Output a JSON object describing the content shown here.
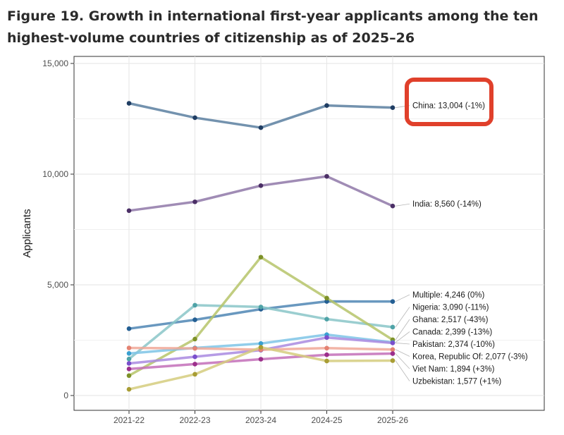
{
  "figure": {
    "title_line1": "Figure 19. Growth in international first-year applicants among the ten",
    "title_line2": "highest-volume countries of citizenship as of 2025–26"
  },
  "highlight_color": "#e0402b",
  "chart_data": {
    "type": "line",
    "title": "Figure 19. Growth in international first-year applicants among the ten highest-volume countries of citizenship as of 2025–26",
    "xlabel": "",
    "ylabel": "Applicants",
    "x": [
      "2021-22",
      "2022-23",
      "2023-24",
      "2024-25",
      "2025-26"
    ],
    "ylim": [
      0,
      15000
    ],
    "yticks": [
      0,
      5000,
      10000,
      15000
    ],
    "ytick_labels": [
      "0",
      "5,000",
      "10,000",
      "15,000"
    ],
    "grid": true,
    "legend": "direct labels at line ends",
    "series": [
      {
        "name": "China",
        "label": "China: 13,004 (-1%)",
        "color": "#5a7fa0",
        "point_color": "#1f3d63",
        "values": [
          13200,
          12550,
          12100,
          13100,
          13004
        ],
        "highlighted": true
      },
      {
        "name": "India",
        "label": "India: 8,560 (-14%)",
        "color": "#8f78a8",
        "point_color": "#4b2f66",
        "values": [
          8350,
          8750,
          9480,
          9900,
          8560
        ]
      },
      {
        "name": "Multiple",
        "label": "Multiple: 4,246 (0%)",
        "color": "#4f86b4",
        "point_color": "#245f93",
        "values": [
          3020,
          3420,
          3900,
          4250,
          4246
        ]
      },
      {
        "name": "Nigeria",
        "label": "Nigeria: 3,090 (-11%)",
        "color": "#8ac6c8",
        "point_color": "#4fa3a7",
        "values": [
          1650,
          4080,
          4000,
          3450,
          3090
        ]
      },
      {
        "name": "Ghana",
        "label": "Ghana: 2,517 (-43%)",
        "color": "#b6c46a",
        "point_color": "#7d9128",
        "values": [
          900,
          2550,
          6250,
          4400,
          2517
        ]
      },
      {
        "name": "Canada",
        "label": "Canada: 2,399 (-13%)",
        "color": "#7ec4e6",
        "point_color": "#3aa0d0",
        "values": [
          1900,
          2150,
          2350,
          2750,
          2399
        ]
      },
      {
        "name": "Pakistan",
        "label": "Pakistan: 2,374 (-10%)",
        "color": "#a98ae0",
        "point_color": "#7a4fcc",
        "values": [
          1450,
          1750,
          2050,
          2620,
          2374
        ]
      },
      {
        "name": "Korea, Republic Of",
        "label": "Korea, Republic Of: 2,077 (-3%)",
        "color": "#f0a898",
        "point_color": "#e48272",
        "values": [
          2150,
          2130,
          2070,
          2140,
          2077
        ]
      },
      {
        "name": "Viet Nam",
        "label": "Viet Nam: 1,894 (+3%)",
        "color": "#c36fb8",
        "point_color": "#9c2f8b",
        "values": [
          1200,
          1420,
          1640,
          1840,
          1894
        ]
      },
      {
        "name": "Uzbekistan",
        "label": "Uzbekistan: 1,577 (+1%)",
        "color": "#d5cc7e",
        "point_color": "#a89d34",
        "values": [
          280,
          960,
          2180,
          1560,
          1577
        ]
      }
    ]
  }
}
